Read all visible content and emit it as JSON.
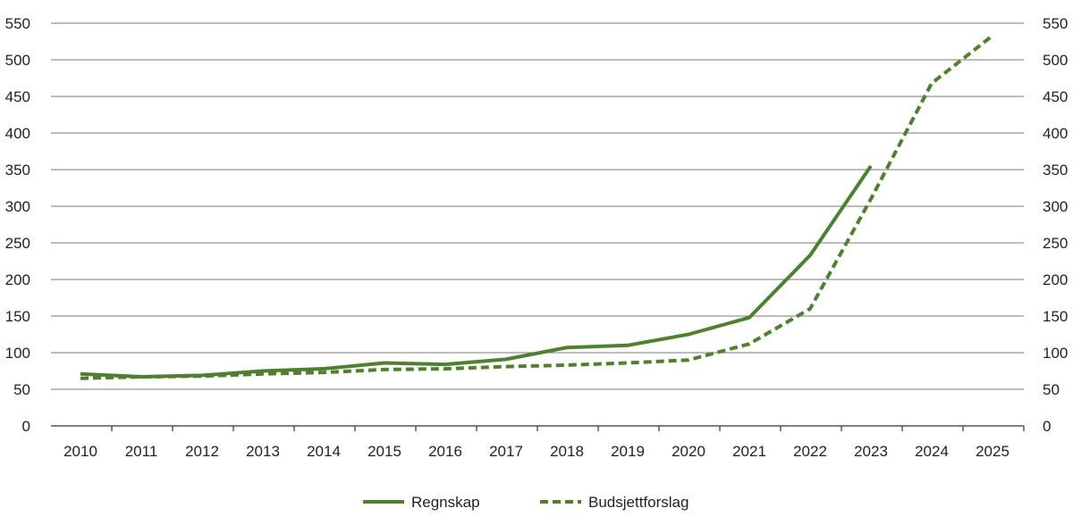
{
  "chart_data": {
    "type": "line",
    "title": "",
    "xlabel": "",
    "ylabel": "",
    "ylim": [
      0,
      550
    ],
    "yticks": [
      0,
      50,
      100,
      150,
      200,
      250,
      300,
      350,
      400,
      450,
      500,
      550
    ],
    "y_tick_labels": [
      "0",
      "50",
      "100",
      "150",
      "200",
      "250",
      "300",
      "350",
      "400",
      "450",
      "500",
      "550"
    ],
    "categories": [
      "2010",
      "2011",
      "2012",
      "2013",
      "2014",
      "2015",
      "2016",
      "2017",
      "2018",
      "2019",
      "2020",
      "2021",
      "2022",
      "2023",
      "2024",
      "2025"
    ],
    "grid": true,
    "secondary_y_axis_mirrored": true,
    "legend_position": "bottom-center",
    "series": [
      {
        "name": "Regnskap",
        "style": "solid",
        "color": "#4f7f2f",
        "values": [
          71,
          67,
          69,
          75,
          78,
          86,
          84,
          91,
          107,
          110,
          125,
          148,
          233,
          355,
          null,
          null
        ]
      },
      {
        "name": "Budsjettforslag",
        "style": "dashed",
        "color": "#4f7f2f",
        "values": [
          65,
          67,
          68,
          71,
          73,
          77,
          78,
          81,
          83,
          86,
          90,
          112,
          160,
          310,
          468,
          533
        ]
      }
    ]
  }
}
